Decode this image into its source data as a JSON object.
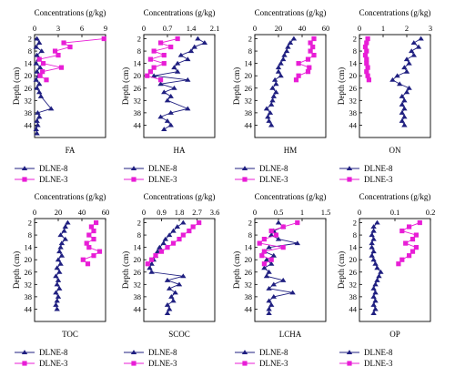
{
  "figure": {
    "header": "Concentrations (g/kg)",
    "ylabel": "Depth (cm)"
  },
  "legend": {
    "series_a": "DLNE-8",
    "series_b": "DLNE-3"
  },
  "colors": {
    "series_a": "#1f1f80",
    "series_b": "#e81ed6"
  },
  "chart_data": [
    {
      "type": "line",
      "title": "FA",
      "xlabel": "Concentrations (g/kg)",
      "ylabel": "Depth (cm)",
      "xlim": [
        0,
        9
      ],
      "xticks": [
        0,
        3,
        6,
        9
      ],
      "ylim": [
        0,
        50
      ],
      "yticks": [
        2,
        8,
        14,
        20,
        26,
        32,
        38,
        44
      ],
      "y_inverted": true,
      "grid": false,
      "series": [
        {
          "name": "DLNE-8",
          "marker": "triangle",
          "x": [
            0.3,
            0.6,
            0.2,
            0.9,
            0.3,
            0.5,
            0.2,
            0.7,
            0.3,
            0.5,
            0.2,
            0.6,
            0.3,
            0.6,
            0.8,
            2.1,
            0.4,
            0.6,
            0.3,
            0.4,
            0.2,
            0.3
          ],
          "y": [
            2,
            4,
            6,
            8,
            10,
            12,
            14,
            16,
            18,
            20,
            22,
            24,
            26,
            28,
            30,
            36,
            38,
            40,
            42,
            44,
            46,
            48
          ]
        },
        {
          "name": "DLNE-3",
          "marker": "square",
          "x": [
            8.8,
            3.7,
            4.5,
            2.6,
            3.0,
            0.6,
            1.1,
            3.4,
            1.0,
            0.7,
            1.5
          ],
          "y": [
            2,
            4,
            6,
            8,
            10,
            12,
            14,
            16,
            18,
            20,
            22
          ]
        }
      ]
    },
    {
      "type": "line",
      "title": "HA",
      "xlabel": "Concentrations (g/kg)",
      "ylabel": "Depth (cm)",
      "xlim": [
        0,
        2.1
      ],
      "xticks": [
        0,
        0.7,
        1.4,
        2.1
      ],
      "ylim": [
        0,
        50
      ],
      "yticks": [
        2,
        8,
        14,
        20,
        26,
        32,
        38,
        44
      ],
      "y_inverted": true,
      "grid": false,
      "series": [
        {
          "name": "DLNE-8",
          "marker": "triangle",
          "x": [
            1.6,
            1.8,
            1.5,
            1.4,
            1.1,
            1.3,
            1.0,
            0.9,
            1.0,
            0.3,
            1.3,
            0.5,
            0.9,
            0.6,
            0.8,
            0.7,
            1.3,
            0.8,
            0.5,
            0.7,
            0.8,
            0.6
          ],
          "y": [
            2,
            4,
            6,
            8,
            10,
            12,
            14,
            16,
            18,
            20,
            22,
            24,
            26,
            28,
            30,
            32,
            36,
            38,
            40,
            42,
            44,
            46
          ]
        },
        {
          "name": "DLNE-3",
          "marker": "square",
          "x": [
            1.0,
            0.5,
            0.8,
            0.3,
            0.6,
            0.2,
            0.6,
            0.3,
            0.2,
            0.1,
            0.5
          ],
          "y": [
            2,
            4,
            6,
            8,
            10,
            12,
            14,
            16,
            18,
            20,
            22
          ]
        }
      ]
    },
    {
      "type": "line",
      "title": "HM",
      "xlabel": "Concentrations (g/kg)",
      "ylabel": "Depth (cm)",
      "xlim": [
        0,
        60
      ],
      "xticks": [
        0,
        20,
        40,
        60
      ],
      "ylim": [
        0,
        50
      ],
      "yticks": [
        2,
        8,
        14,
        20,
        26,
        32,
        38,
        44
      ],
      "y_inverted": true,
      "grid": false,
      "series": [
        {
          "name": "DLNE-8",
          "marker": "triangle",
          "x": [
            33,
            30,
            28,
            27,
            25,
            24,
            22,
            20,
            20,
            22,
            17,
            18,
            15,
            18,
            16,
            15,
            14,
            10,
            13,
            11,
            12,
            14
          ],
          "y": [
            2,
            4,
            6,
            8,
            10,
            12,
            14,
            16,
            18,
            20,
            22,
            24,
            26,
            28,
            30,
            32,
            34,
            36,
            38,
            40,
            42,
            44
          ]
        },
        {
          "name": "DLNE-3",
          "marker": "square",
          "x": [
            50,
            47,
            49,
            47,
            50,
            45,
            37,
            46,
            45,
            37,
            35
          ],
          "y": [
            2,
            4,
            6,
            8,
            10,
            12,
            14,
            16,
            18,
            20,
            22
          ]
        }
      ]
    },
    {
      "type": "line",
      "title": "ON",
      "xlabel": "Concentrations (g/kg)",
      "ylabel": "Depth (cm)",
      "xlim": [
        0,
        3
      ],
      "xticks": [
        0,
        1,
        2,
        3
      ],
      "ylim": [
        0,
        50
      ],
      "yticks": [
        2,
        8,
        14,
        20,
        26,
        32,
        38,
        44
      ],
      "y_inverted": true,
      "grid": false,
      "series": [
        {
          "name": "DLNE-8",
          "marker": "triangle",
          "x": [
            2.6,
            2.3,
            2.5,
            2.2,
            2.3,
            2.0,
            2.1,
            1.9,
            2.0,
            1.6,
            1.4,
            1.7,
            2.1,
            2.0,
            1.8,
            1.9,
            1.8,
            1.9,
            1.8,
            1.9,
            1.8,
            1.9
          ],
          "y": [
            2,
            4,
            6,
            8,
            10,
            12,
            14,
            16,
            18,
            20,
            22,
            24,
            26,
            28,
            30,
            32,
            34,
            36,
            38,
            40,
            42,
            44
          ]
        },
        {
          "name": "DLNE-3",
          "marker": "square",
          "x": [
            0.35,
            0.3,
            0.25,
            0.3,
            0.25,
            0.3,
            0.3,
            0.35,
            0.3,
            0.35,
            0.4
          ],
          "y": [
            2,
            4,
            6,
            8,
            10,
            12,
            14,
            16,
            18,
            20,
            22
          ]
        }
      ]
    },
    {
      "type": "line",
      "title": "TOC",
      "xlabel": "Concentrations (g/kg)",
      "ylabel": "Depth (cm)",
      "xlim": [
        0,
        60
      ],
      "xticks": [
        0,
        20,
        40,
        60
      ],
      "ylim": [
        0,
        50
      ],
      "yticks": [
        2,
        8,
        14,
        20,
        26,
        32,
        38,
        44
      ],
      "y_inverted": true,
      "grid": false,
      "series": [
        {
          "name": "DLNE-8",
          "marker": "triangle",
          "x": [
            28,
            26,
            25,
            22,
            26,
            23,
            22,
            21,
            23,
            20,
            22,
            19,
            21,
            18,
            20,
            19,
            21,
            18,
            20,
            19,
            18,
            19
          ],
          "y": [
            2,
            4,
            6,
            8,
            10,
            12,
            14,
            16,
            18,
            20,
            22,
            24,
            26,
            28,
            30,
            32,
            34,
            36,
            38,
            40,
            42,
            44
          ]
        },
        {
          "name": "DLNE-3",
          "marker": "square",
          "x": [
            52,
            48,
            50,
            46,
            50,
            44,
            46,
            55,
            50,
            41,
            45
          ],
          "y": [
            2,
            4,
            6,
            8,
            10,
            12,
            14,
            16,
            18,
            20,
            22
          ]
        }
      ]
    },
    {
      "type": "line",
      "title": "SCOC",
      "xlabel": "Concentrations (g/kg)",
      "ylabel": "Depth (cm)",
      "xlim": [
        0,
        3.6
      ],
      "xticks": [
        0,
        0.9,
        1.8,
        2.7,
        3.6
      ],
      "ylim": [
        0,
        50
      ],
      "yticks": [
        2,
        8,
        14,
        20,
        26,
        32,
        38,
        44
      ],
      "y_inverted": true,
      "grid": false,
      "series": [
        {
          "name": "DLNE-8",
          "marker": "triangle",
          "x": [
            2.0,
            1.7,
            1.5,
            1.3,
            1.1,
            1.0,
            0.8,
            0.7,
            0.6,
            0.5,
            0.4,
            0.3,
            0.4,
            2.0,
            1.2,
            1.8,
            1.3,
            1.6,
            1.4,
            1.5,
            1.2,
            1.3,
            1.2
          ],
          "y": [
            2,
            4,
            6,
            8,
            10,
            12,
            14,
            16,
            18,
            20,
            22,
            24,
            26,
            28,
            30,
            32,
            34,
            36,
            38,
            40,
            42,
            44,
            46
          ]
        },
        {
          "name": "DLNE-3",
          "marker": "square",
          "x": [
            2.8,
            2.5,
            2.3,
            2.0,
            1.8,
            1.5,
            1.2,
            0.9,
            0.6,
            0.4,
            0.2
          ],
          "y": [
            2,
            4,
            6,
            8,
            10,
            12,
            14,
            16,
            18,
            20,
            22
          ]
        }
      ]
    },
    {
      "type": "line",
      "title": "LCHA",
      "xlabel": "Concentrations (g/kg)",
      "ylabel": "Depth (cm)",
      "xlim": [
        0,
        1.5
      ],
      "xticks": [
        0,
        0.5,
        1,
        1.5
      ],
      "ylim": [
        0,
        50
      ],
      "yticks": [
        2,
        8,
        14,
        20,
        26,
        32,
        38,
        44
      ],
      "y_inverted": true,
      "grid": false,
      "series": [
        {
          "name": "DLNE-8",
          "marker": "triangle",
          "x": [
            0.5,
            0.6,
            0.4,
            0.35,
            0.5,
            0.9,
            0.3,
            0.2,
            0.4,
            0.25,
            0.35,
            0.2,
            0.3,
            0.25,
            0.6,
            0.4,
            0.3,
            0.8,
            0.4,
            0.3,
            0.35,
            0.3,
            0.3
          ],
          "y": [
            2,
            4,
            6,
            8,
            10,
            12,
            14,
            16,
            18,
            20,
            22,
            24,
            26,
            28,
            30,
            32,
            34,
            36,
            38,
            40,
            42,
            44,
            46
          ]
        },
        {
          "name": "DLNE-3",
          "marker": "square",
          "x": [
            0.9,
            0.6,
            0.35,
            0.45,
            0.2,
            0.1,
            0.6,
            0.2,
            0.15,
            0.35,
            0.2
          ],
          "y": [
            2,
            4,
            6,
            8,
            10,
            12,
            14,
            16,
            18,
            20,
            22
          ]
        }
      ]
    },
    {
      "type": "line",
      "title": "OP",
      "xlabel": "Concentrations (g/kg)",
      "ylabel": "Depth (cm)",
      "xlim": [
        0,
        0.2
      ],
      "xticks": [
        0,
        0.1,
        0.2
      ],
      "ylim": [
        0,
        50
      ],
      "yticks": [
        2,
        8,
        14,
        20,
        26,
        32,
        38,
        44
      ],
      "y_inverted": true,
      "grid": false,
      "series": [
        {
          "name": "DLNE-8",
          "marker": "triangle",
          "x": [
            0.05,
            0.04,
            0.04,
            0.035,
            0.04,
            0.035,
            0.035,
            0.04,
            0.035,
            0.04,
            0.045,
            0.05,
            0.06,
            0.055,
            0.05,
            0.045,
            0.04,
            0.045,
            0.04,
            0.045,
            0.04,
            0.045,
            0.04
          ],
          "y": [
            2,
            4,
            6,
            8,
            10,
            12,
            14,
            16,
            18,
            20,
            22,
            24,
            26,
            28,
            30,
            32,
            34,
            36,
            38,
            40,
            42,
            44,
            46
          ]
        },
        {
          "name": "DLNE-3",
          "marker": "square",
          "x": [
            0.17,
            0.14,
            0.12,
            0.16,
            0.15,
            0.13,
            0.16,
            0.15,
            0.14,
            0.12,
            0.11
          ],
          "y": [
            2,
            4,
            6,
            8,
            10,
            12,
            14,
            16,
            18,
            20,
            22
          ]
        }
      ]
    }
  ]
}
